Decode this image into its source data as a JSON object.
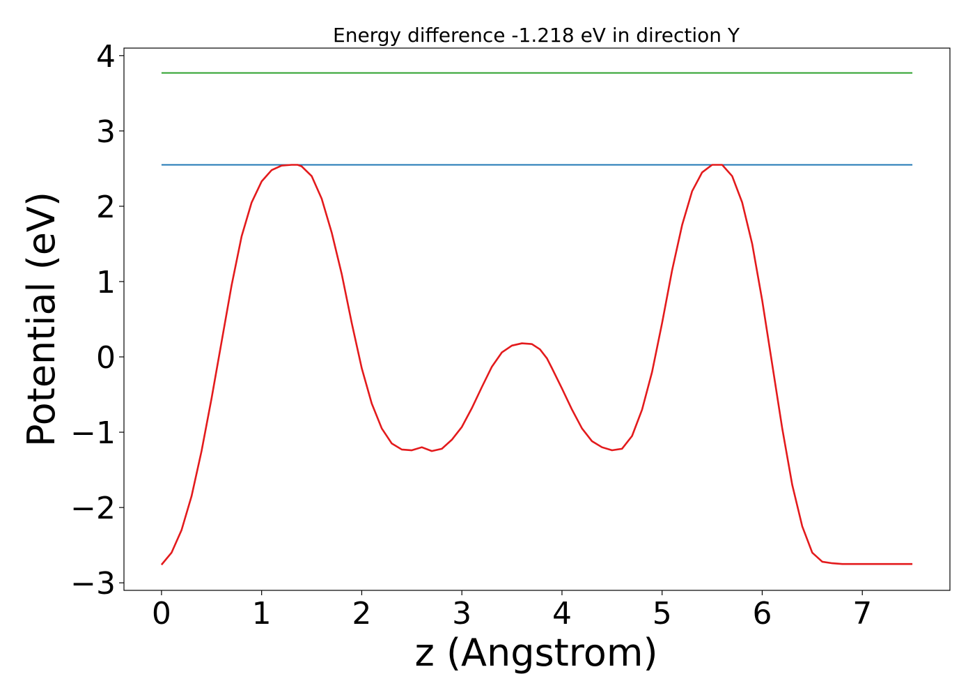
{
  "chart_data": {
    "type": "line",
    "title": "Energy difference -1.218 eV in direction Y",
    "xlabel": "z (Angstrom)",
    "ylabel": "Potential (eV)",
    "xlim": [
      -0.375,
      7.875
    ],
    "ylim": [
      -3.1,
      4.1
    ],
    "x_ticks": [
      0,
      1,
      2,
      3,
      4,
      5,
      6,
      7
    ],
    "y_ticks": [
      -3,
      -2,
      -1,
      0,
      1,
      2,
      3,
      4
    ],
    "x_tick_labels": [
      "0",
      "1",
      "2",
      "3",
      "4",
      "5",
      "6",
      "7"
    ],
    "y_tick_labels": [
      "−3",
      "−2",
      "−1",
      "0",
      "1",
      "2",
      "3",
      "4"
    ],
    "grid": false,
    "series": [
      {
        "color": "#2ca02c",
        "x": [
          0.0,
          7.5
        ],
        "y": [
          3.77,
          3.77
        ]
      },
      {
        "color": "#1f77b4",
        "x": [
          0.0,
          7.5
        ],
        "y": [
          2.55,
          2.55
        ]
      },
      {
        "color": "#e31a1c",
        "x": [
          0.0,
          0.1,
          0.2,
          0.3,
          0.4,
          0.5,
          0.6,
          0.7,
          0.8,
          0.9,
          1.0,
          1.1,
          1.2,
          1.3,
          1.36,
          1.4,
          1.5,
          1.6,
          1.7,
          1.8,
          1.9,
          2.0,
          2.1,
          2.2,
          2.3,
          2.4,
          2.5,
          2.6,
          2.7,
          2.8,
          2.9,
          3.0,
          3.1,
          3.2,
          3.3,
          3.4,
          3.5,
          3.6,
          3.7,
          3.78,
          3.85,
          3.9,
          4.0,
          4.1,
          4.2,
          4.3,
          4.4,
          4.5,
          4.6,
          4.7,
          4.8,
          4.9,
          5.0,
          5.1,
          5.2,
          5.3,
          5.4,
          5.5,
          5.6,
          5.7,
          5.8,
          5.9,
          6.0,
          6.1,
          6.2,
          6.3,
          6.4,
          6.5,
          6.6,
          6.7,
          6.8,
          6.9,
          7.0,
          7.1,
          7.2,
          7.3,
          7.4,
          7.5
        ],
        "y": [
          -2.76,
          -2.6,
          -2.3,
          -1.85,
          -1.25,
          -0.55,
          0.2,
          0.95,
          1.6,
          2.05,
          2.33,
          2.48,
          2.54,
          2.55,
          2.55,
          2.53,
          2.4,
          2.1,
          1.65,
          1.1,
          0.45,
          -0.15,
          -0.62,
          -0.95,
          -1.15,
          -1.23,
          -1.24,
          -1.2,
          -1.25,
          -1.22,
          -1.1,
          -0.93,
          -0.68,
          -0.4,
          -0.13,
          0.06,
          0.15,
          0.18,
          0.17,
          0.1,
          -0.02,
          -0.15,
          -0.42,
          -0.7,
          -0.95,
          -1.12,
          -1.2,
          -1.24,
          -1.22,
          -1.05,
          -0.7,
          -0.2,
          0.45,
          1.15,
          1.75,
          2.2,
          2.45,
          2.55,
          2.55,
          2.4,
          2.05,
          1.5,
          0.75,
          -0.1,
          -0.95,
          -1.7,
          -2.25,
          -2.6,
          -2.72,
          -2.74,
          -2.75,
          -2.75,
          -2.75,
          -2.75,
          -2.75,
          -2.75,
          -2.75,
          -2.75
        ]
      }
    ]
  }
}
